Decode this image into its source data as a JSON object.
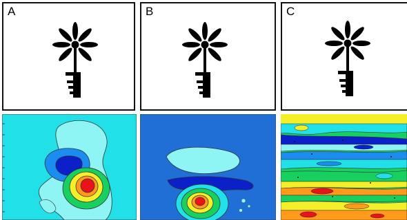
{
  "panels": [
    {
      "label": "A",
      "plant": "flower-pot-drawing",
      "map": "contour-map-a"
    },
    {
      "label": "B",
      "plant": "flower-pot-drawing",
      "map": "contour-map-b"
    },
    {
      "label": "C",
      "plant": "flower-pot-drawing",
      "map": "contour-map-c"
    }
  ],
  "colors": {
    "cyan": "#22e0e8",
    "light_cyan": "#8ff4f4",
    "mid_blue": "#1f6fd6",
    "blue": "#1b8cf0",
    "dark_blue": "#0b20c8",
    "green": "#18d060",
    "yellow": "#f5ef2a",
    "orange": "#ff9a1a",
    "red": "#e8141a"
  }
}
